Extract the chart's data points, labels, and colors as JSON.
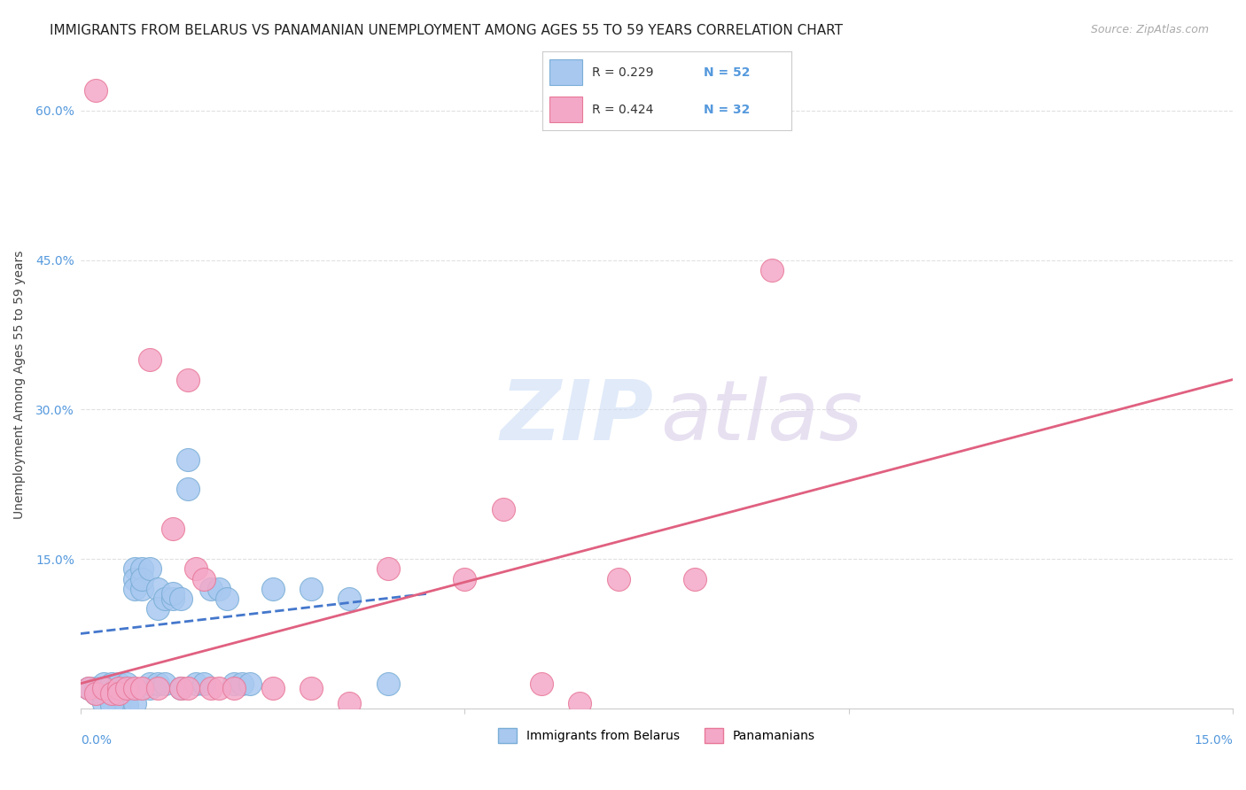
{
  "title": "IMMIGRANTS FROM BELARUS VS PANAMANIAN UNEMPLOYMENT AMONG AGES 55 TO 59 YEARS CORRELATION CHART",
  "source": "Source: ZipAtlas.com",
  "ylabel": "Unemployment Among Ages 55 to 59 years",
  "xlim": [
    0.0,
    0.15
  ],
  "ylim": [
    0.0,
    0.65
  ],
  "yticks": [
    0.0,
    0.15,
    0.3,
    0.45,
    0.6
  ],
  "ytick_labels": [
    "",
    "15.0%",
    "30.0%",
    "45.0%",
    "60.0%"
  ],
  "legend_label_blue": "Immigrants from Belarus",
  "legend_label_pink": "Panamanians",
  "blue_color": "#a8c8f0",
  "pink_color": "#f4a8c8",
  "blue_edge": "#7aaed6",
  "pink_edge": "#e87898",
  "blue_line_color": "#4477cc",
  "pink_line_color": "#e06080",
  "blue_scatter": [
    [
      0.001,
      0.02
    ],
    [
      0.002,
      0.015
    ],
    [
      0.002,
      0.02
    ],
    [
      0.003,
      0.025
    ],
    [
      0.003,
      0.015
    ],
    [
      0.003,
      0.02
    ],
    [
      0.004,
      0.02
    ],
    [
      0.004,
      0.025
    ],
    [
      0.004,
      0.015
    ],
    [
      0.005,
      0.02
    ],
    [
      0.005,
      0.025
    ],
    [
      0.005,
      0.015
    ],
    [
      0.006,
      0.02
    ],
    [
      0.006,
      0.025
    ],
    [
      0.006,
      0.018
    ],
    [
      0.007,
      0.14
    ],
    [
      0.007,
      0.13
    ],
    [
      0.007,
      0.12
    ],
    [
      0.008,
      0.14
    ],
    [
      0.008,
      0.12
    ],
    [
      0.008,
      0.13
    ],
    [
      0.009,
      0.14
    ],
    [
      0.009,
      0.02
    ],
    [
      0.009,
      0.025
    ],
    [
      0.01,
      0.12
    ],
    [
      0.01,
      0.1
    ],
    [
      0.01,
      0.025
    ],
    [
      0.011,
      0.11
    ],
    [
      0.011,
      0.025
    ],
    [
      0.012,
      0.11
    ],
    [
      0.012,
      0.115
    ],
    [
      0.013,
      0.11
    ],
    [
      0.013,
      0.02
    ],
    [
      0.014,
      0.25
    ],
    [
      0.014,
      0.22
    ],
    [
      0.015,
      0.025
    ],
    [
      0.016,
      0.025
    ],
    [
      0.017,
      0.12
    ],
    [
      0.018,
      0.12
    ],
    [
      0.019,
      0.11
    ],
    [
      0.02,
      0.025
    ],
    [
      0.021,
      0.025
    ],
    [
      0.022,
      0.025
    ],
    [
      0.025,
      0.12
    ],
    [
      0.03,
      0.12
    ],
    [
      0.035,
      0.11
    ],
    [
      0.04,
      0.025
    ],
    [
      0.005,
      0.005
    ],
    [
      0.006,
      0.003
    ],
    [
      0.007,
      0.005
    ],
    [
      0.003,
      0.005
    ],
    [
      0.004,
      0.003
    ]
  ],
  "pink_scatter": [
    [
      0.001,
      0.02
    ],
    [
      0.002,
      0.015
    ],
    [
      0.003,
      0.02
    ],
    [
      0.004,
      0.015
    ],
    [
      0.005,
      0.02
    ],
    [
      0.005,
      0.015
    ],
    [
      0.006,
      0.02
    ],
    [
      0.007,
      0.02
    ],
    [
      0.008,
      0.02
    ],
    [
      0.009,
      0.35
    ],
    [
      0.01,
      0.02
    ],
    [
      0.012,
      0.18
    ],
    [
      0.013,
      0.02
    ],
    [
      0.014,
      0.02
    ],
    [
      0.015,
      0.14
    ],
    [
      0.016,
      0.13
    ],
    [
      0.017,
      0.02
    ],
    [
      0.018,
      0.02
    ],
    [
      0.02,
      0.02
    ],
    [
      0.025,
      0.02
    ],
    [
      0.03,
      0.02
    ],
    [
      0.035,
      0.005
    ],
    [
      0.04,
      0.14
    ],
    [
      0.05,
      0.13
    ],
    [
      0.055,
      0.2
    ],
    [
      0.06,
      0.025
    ],
    [
      0.065,
      0.005
    ],
    [
      0.07,
      0.13
    ],
    [
      0.08,
      0.13
    ],
    [
      0.002,
      0.62
    ],
    [
      0.014,
      0.33
    ],
    [
      0.09,
      0.44
    ]
  ],
  "blue_line_x": [
    0.0,
    0.045
  ],
  "blue_line_y": [
    0.075,
    0.115
  ],
  "pink_line_x": [
    0.0,
    0.15
  ],
  "pink_line_y": [
    0.025,
    0.33
  ],
  "background_color": "#ffffff",
  "grid_color": "#e0e0e0",
  "title_fontsize": 11,
  "axis_label_fontsize": 10,
  "tick_fontsize": 10,
  "legend_r_blue": "R = 0.229",
  "legend_n_blue": "N = 52",
  "legend_r_pink": "R = 0.424",
  "legend_n_pink": "N = 32"
}
